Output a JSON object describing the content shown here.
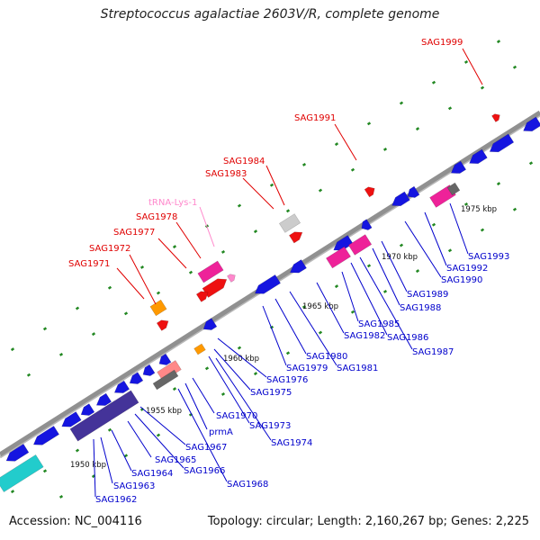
{
  "title": "Streptococcus agalactiae 2603V/R, complete genome",
  "footer": {
    "accession": "Accession: NC_004116",
    "stats": "Topology: circular; Length: 2,160,267 bp; Genes: 2,225"
  },
  "colors": {
    "backbone": "#909090",
    "forward_label": "#e00000",
    "reverse_label": "#0000cc",
    "trna_label": "#ff88cc",
    "tick_dot": "#228822",
    "scale_text": "#111111"
  },
  "scale_labels": [
    "1950 kbp",
    "1955 kbp",
    "1960 kbp",
    "1965 kbp",
    "1970 kbp",
    "1975 kbp"
  ],
  "forward_genes": [
    "SAG1971",
    "SAG1972",
    "SAG1977",
    "SAG1978",
    "tRNA-Lys-1",
    "SAG1983",
    "SAG1984",
    "SAG1991",
    "SAG1999"
  ],
  "reverse_genes": [
    "SAG1962",
    "SAG1963",
    "SAG1964",
    "SAG1965",
    "SAG1966",
    "SAG1967",
    "SAG1968",
    "prmA",
    "SAG1970",
    "SAG1973",
    "SAG1974",
    "SAG1975",
    "SAG1976",
    "SAG1979",
    "SAG1980",
    "SAG1981",
    "SAG1982",
    "SAG1985",
    "SAG1986",
    "SAG1987",
    "SAG1988",
    "SAG1989",
    "SAG1990",
    "SAG1992",
    "SAG1993"
  ]
}
